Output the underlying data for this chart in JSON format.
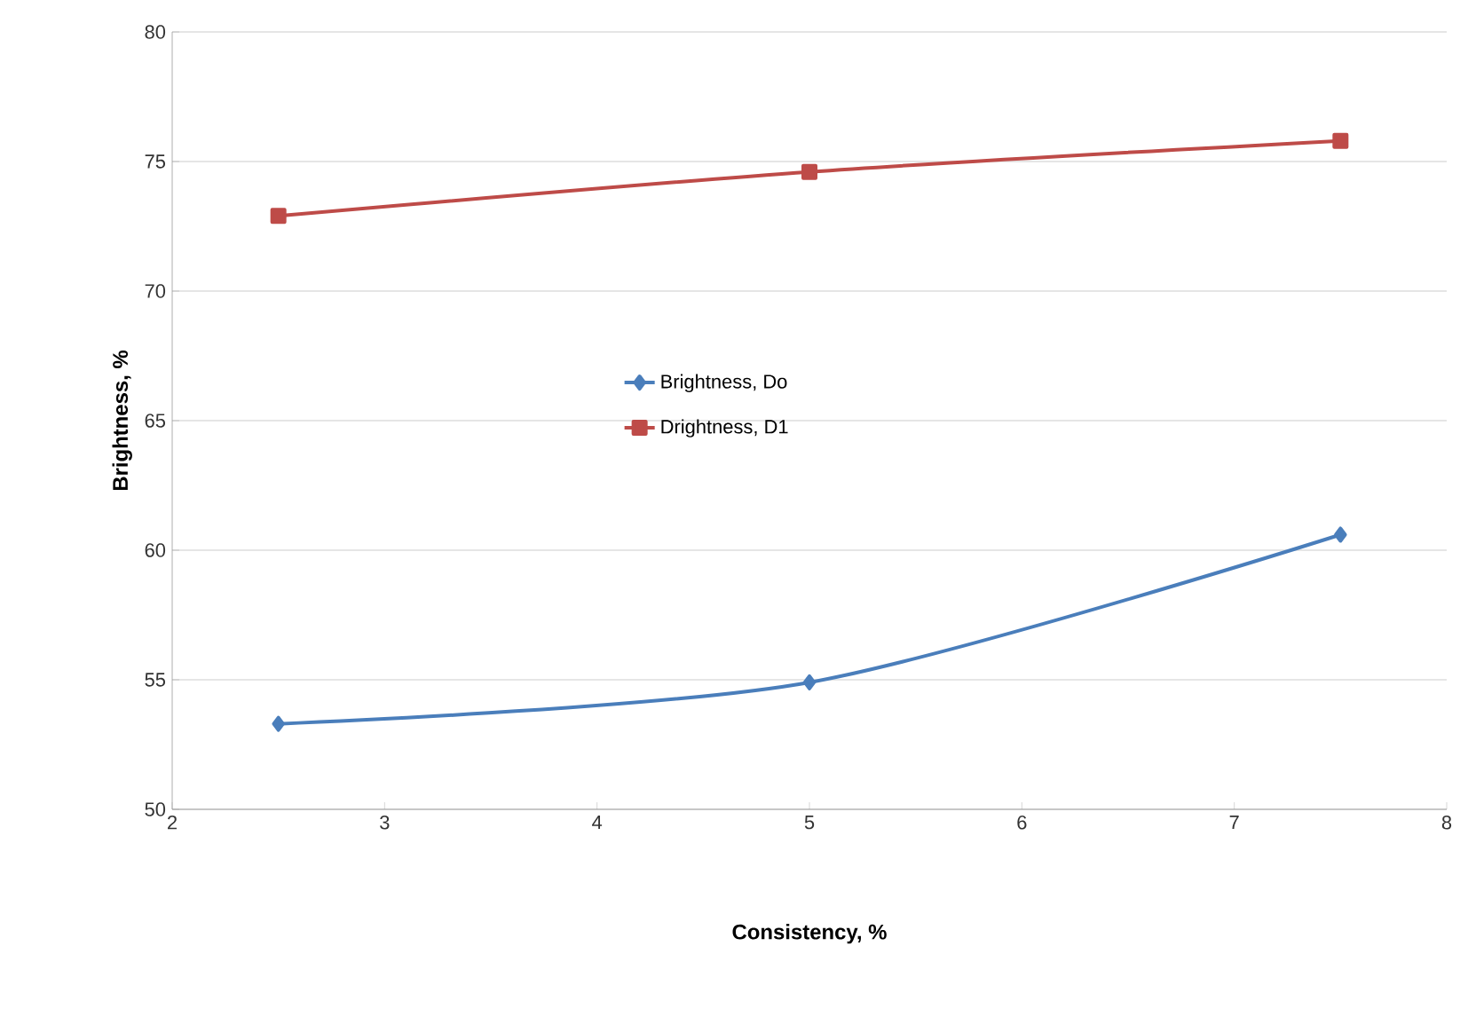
{
  "chart_data": {
    "type": "line",
    "xlabel": "Consistency, %",
    "ylabel": "Brightness, %",
    "xlim": [
      2,
      8
    ],
    "xticks": [
      2,
      3,
      4,
      5,
      6,
      7,
      8
    ],
    "ylim": [
      50,
      80
    ],
    "yticks": [
      50,
      55,
      60,
      65,
      70,
      75,
      80
    ],
    "grid": "y",
    "legend": "center",
    "series": [
      {
        "name": "Brightness, Do",
        "color": "#4a7ebb",
        "marker": "diamond",
        "x": [
          2.5,
          5,
          7.5
        ],
        "values": [
          53.3,
          54.9,
          60.6
        ]
      },
      {
        "name": "Drightness, D1",
        "color": "#be4b48",
        "marker": "square",
        "x": [
          2.5,
          5,
          7.5
        ],
        "values": [
          72.9,
          74.6,
          75.8
        ]
      }
    ]
  }
}
